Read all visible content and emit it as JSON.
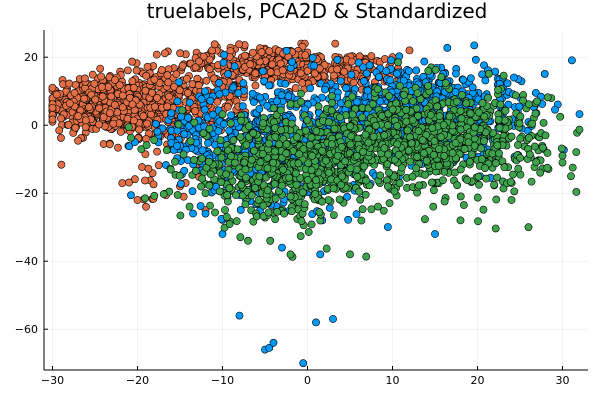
{
  "chart_data": {
    "type": "scatter",
    "title": "truelabels, PCA2D & Standardized",
    "xlabel": "",
    "ylabel": "",
    "xlim": [
      -31,
      33
    ],
    "ylim": [
      -72,
      28
    ],
    "xticks": [
      -30,
      -20,
      -10,
      0,
      10,
      20,
      30
    ],
    "yticks": [
      -60,
      -40,
      -20,
      0,
      20
    ],
    "grid": true,
    "legend": "none",
    "colors": {
      "orange": "#e26f46",
      "blue": "#009af9",
      "green": "#3da44d"
    },
    "series": [
      {
        "color": "orange",
        "clusters": [
          {
            "cx": -24,
            "cy": 6,
            "sx": 3.2,
            "sy": 4.2,
            "n": 520
          },
          {
            "cx": -17,
            "cy": 5,
            "sx": 3.0,
            "sy": 5.5,
            "n": 260
          },
          {
            "cx": -5,
            "cy": 18,
            "sx": 5.0,
            "sy": 2.8,
            "n": 280
          },
          {
            "cx": 5,
            "cy": 16,
            "sx": 3.5,
            "sy": 2.6,
            "n": 120
          },
          {
            "cx": -11,
            "cy": 9,
            "sx": 3.0,
            "sy": 4.5,
            "n": 90
          },
          {
            "cx": -17,
            "cy": -17,
            "sx": 2.5,
            "sy": 4.0,
            "n": 18
          }
        ],
        "points": [
          [
            -29.5,
            9
          ],
          [
            -29,
            2
          ],
          [
            -20,
            -22
          ],
          [
            -19,
            -24
          ],
          [
            -12,
            -25
          ],
          [
            -15,
            -18
          ],
          [
            10,
            20
          ],
          [
            12,
            22
          ]
        ]
      },
      {
        "color": "blue",
        "clusters": [
          {
            "cx": -3,
            "cy": -4,
            "sx": 6.0,
            "sy": 9.0,
            "n": 650
          },
          {
            "cx": 13,
            "cy": 6,
            "sx": 5.0,
            "sy": 6.0,
            "n": 420
          },
          {
            "cx": 20,
            "cy": 2,
            "sx": 4.0,
            "sy": 7.0,
            "n": 160
          },
          {
            "cx": -14,
            "cy": -3,
            "sx": 2.5,
            "sy": 5.0,
            "n": 60
          }
        ],
        "points": [
          [
            -8,
            -56
          ],
          [
            -5,
            -66
          ],
          [
            -4.5,
            -65.5
          ],
          [
            -4,
            -64
          ],
          [
            1,
            -58
          ],
          [
            3,
            -57
          ],
          [
            -0.5,
            -70
          ],
          [
            1.5,
            -38
          ],
          [
            -3,
            -36
          ],
          [
            15,
            -32
          ],
          [
            23,
            14
          ],
          [
            -10,
            -32
          ],
          [
            -12,
            -26
          ]
        ]
      },
      {
        "color": "green",
        "clusters": [
          {
            "cx": -3,
            "cy": -13,
            "sx": 6.0,
            "sy": 7.5,
            "n": 550
          },
          {
            "cx": 16,
            "cy": -4,
            "sx": 6.0,
            "sy": 7.5,
            "n": 650
          },
          {
            "cx": 6,
            "cy": -8,
            "sx": 5.0,
            "sy": 6.0,
            "n": 200
          }
        ],
        "points": [
          [
            27,
            7
          ],
          [
            28,
            -3
          ],
          [
            26,
            -30
          ],
          [
            30,
            -9
          ],
          [
            31,
            -15
          ],
          [
            30,
            -11
          ],
          [
            -7,
            -34
          ],
          [
            5,
            -38
          ],
          [
            -2,
            -38
          ],
          [
            18,
            -28
          ],
          [
            24,
            -22
          ],
          [
            -12,
            -20
          ]
        ]
      }
    ]
  }
}
